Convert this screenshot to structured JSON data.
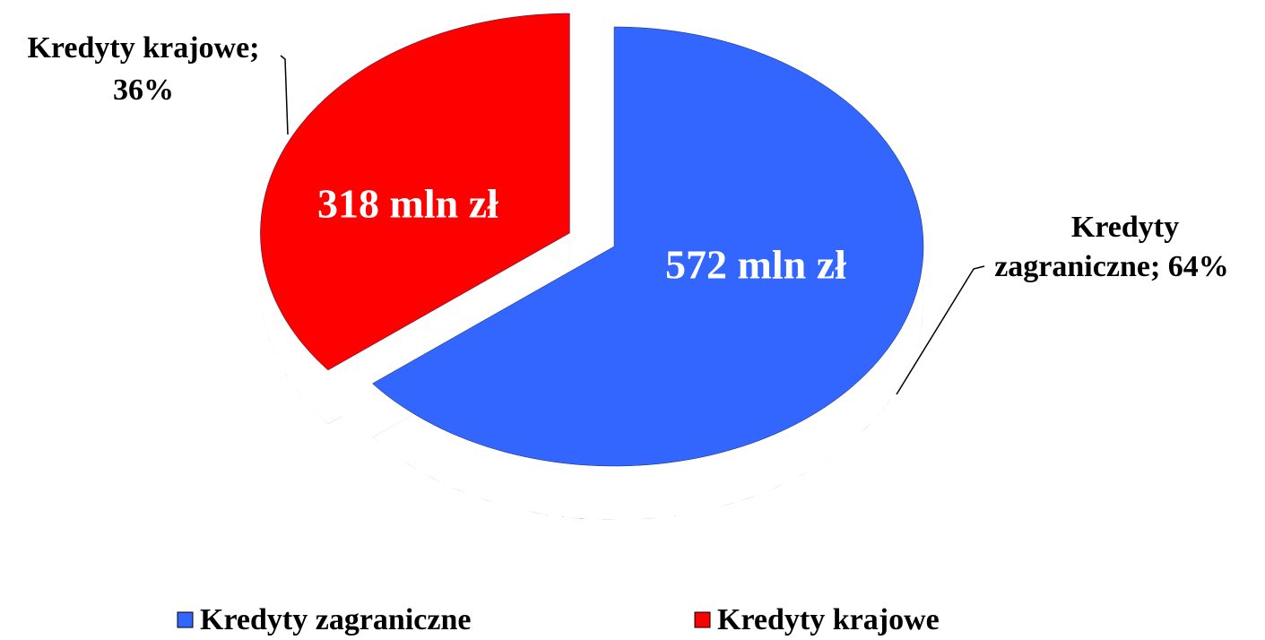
{
  "chart_data": {
    "type": "pie",
    "categories": [
      "Kredyty zagraniczne",
      "Kredyty krajowe"
    ],
    "values": [
      572,
      318
    ],
    "value_labels": [
      "572 mln zł",
      "318 mln zł"
    ],
    "percents": [
      64,
      36
    ],
    "data_labels": [
      [
        "Kredyty",
        "zagraniczne; 64%"
      ],
      [
        "Kredyty krajowe;",
        "36%"
      ]
    ],
    "colors": [
      "#3366ff",
      "#ff0000"
    ],
    "legend": "bottom"
  }
}
